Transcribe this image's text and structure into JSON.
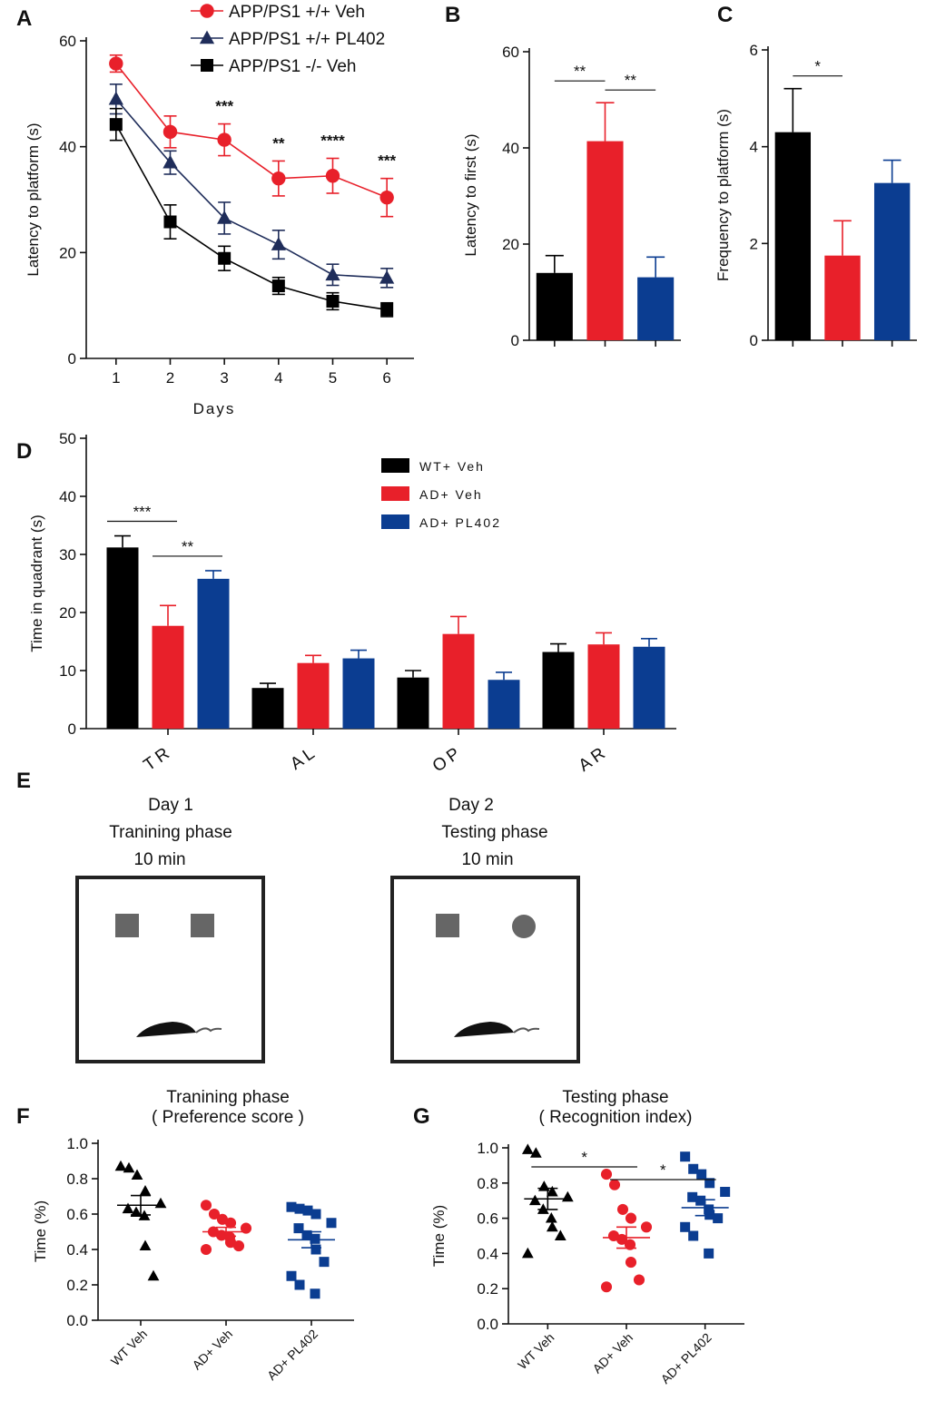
{
  "chart_data": [
    {
      "panel": "A",
      "type": "line",
      "xlabel": "Days",
      "ylabel": "Latency to platform (s)",
      "x": [
        1,
        2,
        3,
        4,
        5,
        6
      ],
      "xlim": [
        0.45,
        6.5
      ],
      "xticks": [
        1,
        2,
        3,
        4,
        5,
        6
      ],
      "ylim": [
        0,
        60
      ],
      "yticks": [
        0,
        20,
        40,
        60
      ],
      "series": [
        {
          "name": "APP/PS1 +/+ Veh",
          "color": "#e8202a",
          "marker": "circle",
          "values": [
            55.7,
            42.8,
            41.3,
            34.0,
            34.5,
            30.4
          ],
          "errors": [
            1.6,
            3.0,
            3.0,
            3.3,
            3.3,
            3.6
          ]
        },
        {
          "name": "APP/PS1 +/+ PL402",
          "color": "#1f2d5a",
          "marker": "triangle",
          "values": [
            49.0,
            37.0,
            26.5,
            21.5,
            15.8,
            15.2
          ],
          "errors": [
            2.8,
            2.2,
            3.0,
            2.7,
            2.0,
            1.8
          ]
        },
        {
          "name": "APP/PS1 -/- Veh",
          "color": "#000000",
          "marker": "square",
          "values": [
            44.2,
            25.8,
            18.9,
            13.7,
            10.8,
            9.2
          ],
          "errors": [
            3.0,
            3.2,
            2.3,
            1.6,
            1.6,
            1.3
          ]
        }
      ],
      "annotations": [
        {
          "text": "***",
          "x": 3
        },
        {
          "text": "**",
          "x": 4
        },
        {
          "text": "****",
          "x": 5
        },
        {
          "text": "***",
          "x": 6
        }
      ]
    },
    {
      "panel": "B",
      "type": "bar",
      "ylabel": "Latency to first (s)",
      "ylim": [
        0,
        60
      ],
      "yticks": [
        0,
        20,
        40,
        60
      ],
      "values": [
        14.0,
        41.4,
        13.1
      ],
      "errors": [
        3.6,
        8.0,
        4.2
      ],
      "colors": [
        "#000000",
        "#e8202a",
        "#0b3d91"
      ],
      "significance": [
        {
          "label": "**",
          "from": 0,
          "to": 1
        },
        {
          "label": "**",
          "from": 1,
          "to": 2
        }
      ]
    },
    {
      "panel": "C",
      "type": "bar",
      "ylabel": "Frequency  to platform (s)",
      "ylim": [
        0,
        6
      ],
      "yticks": [
        0,
        2,
        4,
        6
      ],
      "values": [
        4.3,
        1.75,
        3.25
      ],
      "errors": [
        0.9,
        0.72,
        0.47
      ],
      "colors": [
        "#000000",
        "#e8202a",
        "#0b3d91"
      ],
      "significance": [
        {
          "label": "*",
          "from": 0,
          "to": 1
        }
      ]
    },
    {
      "panel": "D",
      "type": "groupedbar",
      "ylabel": "Time in quadrant  (s)",
      "ylim": [
        0,
        50
      ],
      "yticks": [
        0,
        10,
        20,
        30,
        40,
        50
      ],
      "categories": [
        "TR",
        "AL",
        "OP",
        "AR"
      ],
      "series": [
        {
          "name": "WT+ Veh",
          "color": "#000000",
          "values": [
            31.2,
            7.0,
            8.8,
            13.2
          ],
          "errors": [
            2.0,
            0.8,
            1.2,
            1.4
          ]
        },
        {
          "name": "AD+ Veh",
          "color": "#e8202a",
          "values": [
            17.7,
            11.3,
            16.3,
            14.5
          ],
          "errors": [
            3.5,
            1.3,
            3.0,
            2.0
          ]
        },
        {
          "name": "AD+ PL402",
          "color": "#0b3d91",
          "values": [
            25.8,
            12.1,
            8.4,
            14.1
          ],
          "errors": [
            1.4,
            1.4,
            1.3,
            1.4
          ]
        }
      ],
      "significance": [
        {
          "label": "***",
          "category": 0,
          "from": 0,
          "to": 1
        },
        {
          "label": "**",
          "category": 0,
          "from": 1,
          "to": 2
        }
      ]
    },
    {
      "panel": "F",
      "type": "dotplot",
      "title": "Tranining phase",
      "subtitle": "( Preference score )",
      "ylabel": "Time (%)",
      "ylim": [
        0,
        1
      ],
      "yticks": [
        {
          "value": 0,
          "label": "0.0"
        },
        0.2,
        0.4,
        0.6,
        0.8,
        {
          "value": 1,
          "label": "1.0"
        }
      ],
      "categories": [
        "WT Veh",
        "AD+ Veh",
        "AD+ PL402"
      ],
      "groups": [
        {
          "color": "#000000",
          "marker": "triangle",
          "values": [
            0.87,
            0.86,
            0.82,
            0.73,
            0.66,
            0.63,
            0.61,
            0.59,
            0.42,
            0.25
          ],
          "mean": 0.65,
          "sem": 0.055
        },
        {
          "color": "#e8202a",
          "marker": "circle",
          "values": [
            0.65,
            0.6,
            0.57,
            0.55,
            0.52,
            0.5,
            0.48,
            0.47,
            0.44,
            0.42,
            0.4
          ],
          "mean": 0.5,
          "sem": 0.025
        },
        {
          "color": "#0b3d91",
          "marker": "square",
          "values": [
            0.64,
            0.63,
            0.62,
            0.6,
            0.55,
            0.52,
            0.48,
            0.46,
            0.4,
            0.33,
            0.25,
            0.2,
            0.15
          ],
          "mean": 0.455,
          "sem": 0.045
        }
      ],
      "significance": []
    },
    {
      "panel": "G",
      "type": "dotplot",
      "title": "Testing phase",
      "subtitle": "( Recognition index)",
      "ylabel": "Time (%)",
      "ylim": [
        0,
        1
      ],
      "yticks": [
        {
          "value": 0,
          "label": "0.0"
        },
        0.2,
        0.4,
        0.6,
        0.8,
        {
          "value": 1,
          "label": "1.0"
        }
      ],
      "categories": [
        "WT Veh",
        "AD+ Veh",
        "AD+ PL402"
      ],
      "groups": [
        {
          "color": "#000000",
          "marker": "triangle",
          "values": [
            0.99,
            0.97,
            0.78,
            0.75,
            0.72,
            0.7,
            0.65,
            0.6,
            0.55,
            0.5,
            0.4
          ],
          "mean": 0.71,
          "sem": 0.06
        },
        {
          "color": "#e8202a",
          "marker": "circle",
          "values": [
            0.85,
            0.79,
            0.65,
            0.6,
            0.55,
            0.5,
            0.48,
            0.45,
            0.35,
            0.25,
            0.21
          ],
          "mean": 0.49,
          "sem": 0.06
        },
        {
          "color": "#0b3d91",
          "marker": "square",
          "values": [
            0.95,
            0.88,
            0.85,
            0.8,
            0.75,
            0.72,
            0.7,
            0.65,
            0.62,
            0.6,
            0.55,
            0.5,
            0.4
          ],
          "mean": 0.66,
          "sem": 0.045
        }
      ],
      "significance": [
        {
          "label": "*",
          "from": 0,
          "to": 1
        },
        {
          "label": "*",
          "from": 1,
          "to": 2
        }
      ]
    }
  ],
  "diagram": {
    "panel": "E",
    "left": {
      "day": "Day 1",
      "phase": "Tranining phase",
      "duration": "10 min"
    },
    "right": {
      "day": "Day 2",
      "phase": "Testing phase",
      "duration": "10 min"
    }
  }
}
